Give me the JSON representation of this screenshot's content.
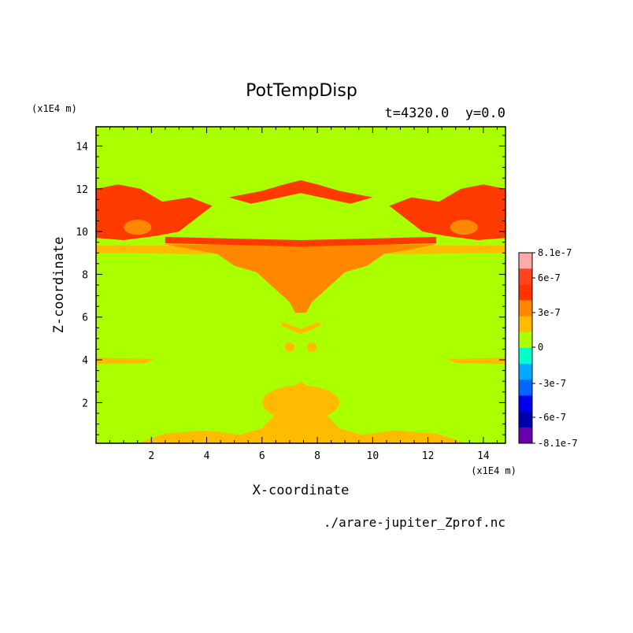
{
  "chart_data": {
    "type": "heatmap",
    "title": "PotTempDisp",
    "subtitle": "t=4320.0  y=0.0",
    "xlabel": "X-coordinate",
    "ylabel": "Z-coordinate",
    "x_unit": "(x1E4 m)",
    "y_unit": "(x1E4 m)",
    "xlim": [
      0,
      14.8
    ],
    "ylim": [
      0.1,
      14.9
    ],
    "x_ticks": [
      "2",
      "4",
      "6",
      "8",
      "10",
      "12",
      "14"
    ],
    "x_tick_values": [
      2,
      4,
      6,
      8,
      10,
      12,
      14
    ],
    "y_ticks": [
      "2",
      "4",
      "6",
      "8",
      "10",
      "12",
      "14"
    ],
    "y_tick_values": [
      2,
      4,
      6,
      8,
      10,
      12,
      14
    ],
    "background_level": "0",
    "regions": [
      {
        "level": "6e-7",
        "desc": "upper-left red band",
        "x": [
          0,
          4.4
        ],
        "z": [
          9.6,
          12.2
        ]
      },
      {
        "level": "6e-7",
        "desc": "upper-right red band",
        "x": [
          10.4,
          14.8
        ],
        "z": [
          9.6,
          12.2
        ]
      },
      {
        "level": "6e-7",
        "desc": "central red filaments",
        "x": [
          4.8,
          10.0
        ],
        "z": [
          11.0,
          12.4
        ]
      },
      {
        "level": "6e-7",
        "desc": "red layer",
        "x": [
          2.5,
          12.5
        ],
        "z": [
          9.3,
          9.7
        ]
      },
      {
        "level": "3e-7",
        "desc": "orange plume",
        "x": [
          4.0,
          10.5
        ],
        "z": [
          6.2,
          9.4
        ]
      },
      {
        "level": "3e-7",
        "desc": "yellow layer",
        "x": [
          0,
          14.8
        ],
        "z": [
          9.0,
          9.3
        ]
      },
      {
        "level": "3e-7",
        "desc": "yellow lower plume",
        "x": [
          5.8,
          9.5
        ],
        "z": [
          0.3,
          3.0
        ]
      },
      {
        "level": "3e-7",
        "desc": "yellow bottom band",
        "x": [
          1.5,
          13.5
        ],
        "z": [
          0.1,
          0.8
        ]
      },
      {
        "level": "3e-7",
        "desc": "yellow streaks",
        "x": [
          0,
          14.8
        ],
        "z": [
          3.8,
          4.1
        ]
      }
    ],
    "colorbar": {
      "labels": [
        "8.1e-7",
        "6e-7",
        "3e-7",
        "0",
        "-3e-7",
        "-6e-7",
        "-8.1e-7"
      ],
      "colors": [
        "#ffaaaa",
        "#ff4422",
        "#ff3300",
        "#ff8800",
        "#ffbb00",
        "#aaff00",
        "#00ffcc",
        "#00aaff",
        "#0066ff",
        "#0000ee",
        "#0000aa",
        "#6600aa"
      ]
    },
    "filename": "./arare-jupiter_Zprof.nc"
  }
}
